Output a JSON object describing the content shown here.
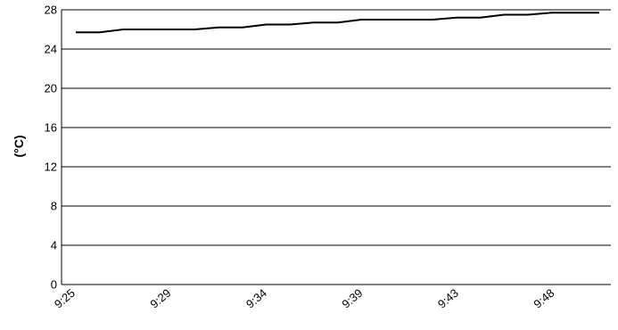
{
  "chart_data": {
    "type": "line",
    "title": "",
    "xlabel": "",
    "ylabel": "(°C)",
    "ylim": [
      0,
      28
    ],
    "yticks": [
      0,
      4,
      8,
      12,
      16,
      20,
      24,
      28
    ],
    "grid": true,
    "legend": "none",
    "x_tick_labels": [
      "9:25",
      "9:29",
      "9:34",
      "9:39",
      "9:43",
      "9:48"
    ],
    "series": [
      {
        "values": [
          25.7,
          25.7,
          26.0,
          26.0,
          26.0,
          26.0,
          26.2,
          26.2,
          26.5,
          26.5,
          26.7,
          26.7,
          27.0,
          27.0,
          27.0,
          27.0,
          27.2,
          27.2,
          27.5,
          27.5,
          27.7,
          27.7,
          27.7
        ]
      }
    ]
  },
  "colors": {
    "line": "#000000",
    "grid": "#000000",
    "background": "#ffffff"
  }
}
